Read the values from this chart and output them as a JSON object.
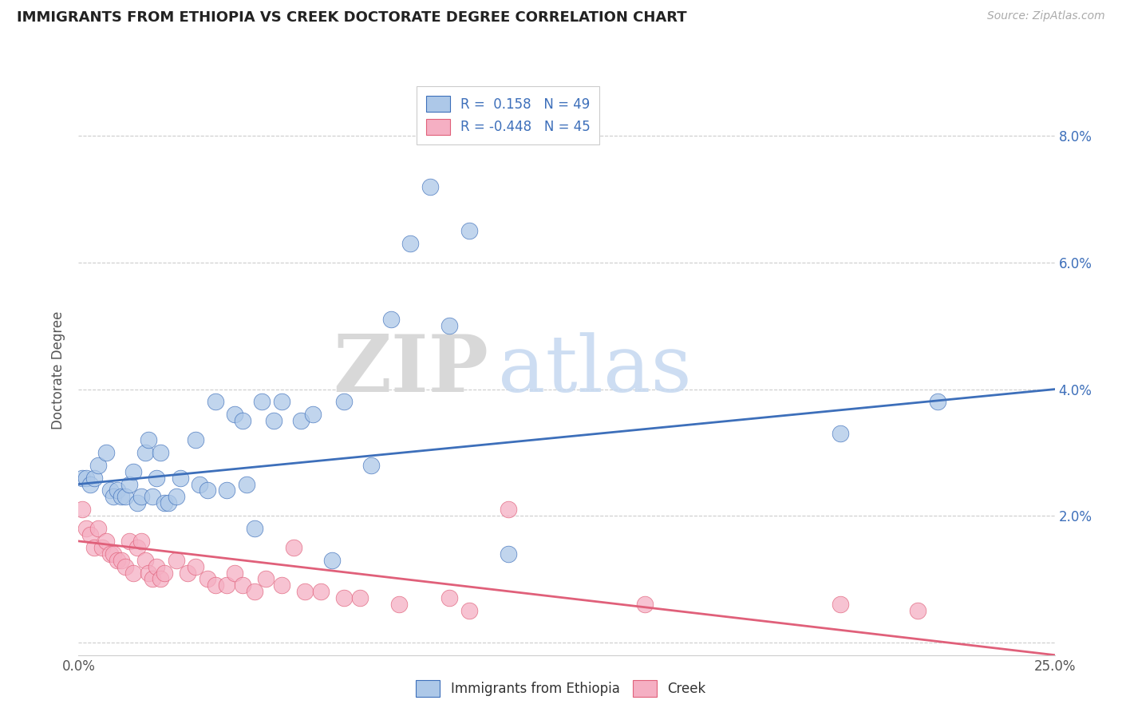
{
  "title": "IMMIGRANTS FROM ETHIOPIA VS CREEK DOCTORATE DEGREE CORRELATION CHART",
  "source": "Source: ZipAtlas.com",
  "ylabel": "Doctorate Degree",
  "xlim": [
    0.0,
    0.25
  ],
  "ylim": [
    -0.002,
    0.088
  ],
  "yticks": [
    0.0,
    0.02,
    0.04,
    0.06,
    0.08
  ],
  "ytick_labels_right": [
    "",
    "2.0%",
    "4.0%",
    "6.0%",
    "8.0%"
  ],
  "xticks": [
    0.0,
    0.05,
    0.1,
    0.15,
    0.2,
    0.25
  ],
  "xtick_labels": [
    "0.0%",
    "",
    "",
    "",
    "",
    "25.0%"
  ],
  "legend_r1": "R =  0.158   N = 49",
  "legend_r2": "R = -0.448   N = 45",
  "blue_color": "#adc8e8",
  "pink_color": "#f5afc3",
  "blue_line_color": "#3d6fba",
  "pink_line_color": "#e0607a",
  "watermark_zip": "ZIP",
  "watermark_atlas": "atlas",
  "blue_scatter": [
    [
      0.001,
      0.026
    ],
    [
      0.002,
      0.026
    ],
    [
      0.003,
      0.025
    ],
    [
      0.004,
      0.026
    ],
    [
      0.005,
      0.028
    ],
    [
      0.007,
      0.03
    ],
    [
      0.008,
      0.024
    ],
    [
      0.009,
      0.023
    ],
    [
      0.01,
      0.024
    ],
    [
      0.011,
      0.023
    ],
    [
      0.012,
      0.023
    ],
    [
      0.013,
      0.025
    ],
    [
      0.014,
      0.027
    ],
    [
      0.015,
      0.022
    ],
    [
      0.016,
      0.023
    ],
    [
      0.017,
      0.03
    ],
    [
      0.018,
      0.032
    ],
    [
      0.019,
      0.023
    ],
    [
      0.02,
      0.026
    ],
    [
      0.021,
      0.03
    ],
    [
      0.022,
      0.022
    ],
    [
      0.023,
      0.022
    ],
    [
      0.025,
      0.023
    ],
    [
      0.026,
      0.026
    ],
    [
      0.03,
      0.032
    ],
    [
      0.031,
      0.025
    ],
    [
      0.033,
      0.024
    ],
    [
      0.035,
      0.038
    ],
    [
      0.038,
      0.024
    ],
    [
      0.04,
      0.036
    ],
    [
      0.042,
      0.035
    ],
    [
      0.043,
      0.025
    ],
    [
      0.045,
      0.018
    ],
    [
      0.047,
      0.038
    ],
    [
      0.05,
      0.035
    ],
    [
      0.052,
      0.038
    ],
    [
      0.057,
      0.035
    ],
    [
      0.06,
      0.036
    ],
    [
      0.065,
      0.013
    ],
    [
      0.068,
      0.038
    ],
    [
      0.075,
      0.028
    ],
    [
      0.08,
      0.051
    ],
    [
      0.085,
      0.063
    ],
    [
      0.09,
      0.072
    ],
    [
      0.095,
      0.05
    ],
    [
      0.1,
      0.065
    ],
    [
      0.11,
      0.014
    ],
    [
      0.195,
      0.033
    ],
    [
      0.22,
      0.038
    ]
  ],
  "pink_scatter": [
    [
      0.001,
      0.021
    ],
    [
      0.002,
      0.018
    ],
    [
      0.003,
      0.017
    ],
    [
      0.004,
      0.015
    ],
    [
      0.005,
      0.018
    ],
    [
      0.006,
      0.015
    ],
    [
      0.007,
      0.016
    ],
    [
      0.008,
      0.014
    ],
    [
      0.009,
      0.014
    ],
    [
      0.01,
      0.013
    ],
    [
      0.011,
      0.013
    ],
    [
      0.012,
      0.012
    ],
    [
      0.013,
      0.016
    ],
    [
      0.014,
      0.011
    ],
    [
      0.015,
      0.015
    ],
    [
      0.016,
      0.016
    ],
    [
      0.017,
      0.013
    ],
    [
      0.018,
      0.011
    ],
    [
      0.019,
      0.01
    ],
    [
      0.02,
      0.012
    ],
    [
      0.021,
      0.01
    ],
    [
      0.022,
      0.011
    ],
    [
      0.025,
      0.013
    ],
    [
      0.028,
      0.011
    ],
    [
      0.03,
      0.012
    ],
    [
      0.033,
      0.01
    ],
    [
      0.035,
      0.009
    ],
    [
      0.038,
      0.009
    ],
    [
      0.04,
      0.011
    ],
    [
      0.042,
      0.009
    ],
    [
      0.045,
      0.008
    ],
    [
      0.048,
      0.01
    ],
    [
      0.052,
      0.009
    ],
    [
      0.055,
      0.015
    ],
    [
      0.058,
      0.008
    ],
    [
      0.062,
      0.008
    ],
    [
      0.068,
      0.007
    ],
    [
      0.072,
      0.007
    ],
    [
      0.082,
      0.006
    ],
    [
      0.095,
      0.007
    ],
    [
      0.1,
      0.005
    ],
    [
      0.11,
      0.021
    ],
    [
      0.145,
      0.006
    ],
    [
      0.195,
      0.006
    ],
    [
      0.215,
      0.005
    ]
  ],
  "blue_line_x": [
    0.0,
    0.25
  ],
  "blue_line_y": [
    0.025,
    0.04
  ],
  "pink_line_x": [
    0.0,
    0.25
  ],
  "pink_line_y": [
    0.016,
    -0.002
  ]
}
